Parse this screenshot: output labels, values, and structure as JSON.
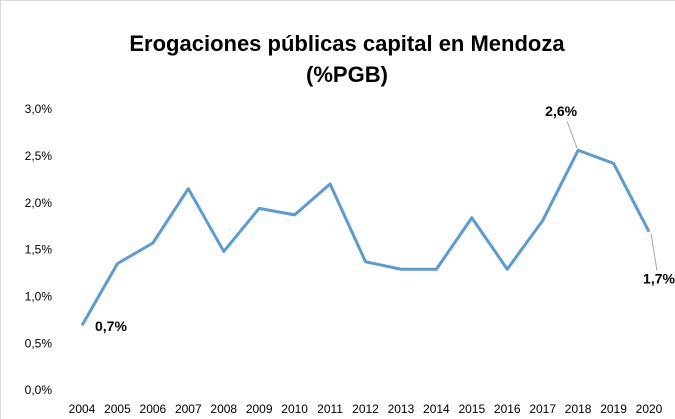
{
  "chart_data": {
    "type": "line",
    "title": "Erogaciones públicas capital en Mendoza",
    "subtitle": "(%PGB)",
    "categories": [
      "2004",
      "2005",
      "2006",
      "2007",
      "2008",
      "2009",
      "2010",
      "2011",
      "2012",
      "2013",
      "2014",
      "2015",
      "2016",
      "2017",
      "2018",
      "2019",
      "2020"
    ],
    "series": [
      {
        "name": "Erogaciones públicas capital",
        "color": "#5b9bd5",
        "values": [
          0.7,
          1.36,
          1.58,
          2.16,
          1.49,
          1.95,
          1.88,
          2.21,
          1.38,
          1.3,
          1.3,
          1.85,
          1.3,
          1.82,
          2.57,
          2.43,
          1.7
        ],
        "value_labels": [
          "0,7%",
          null,
          null,
          null,
          null,
          null,
          null,
          null,
          null,
          null,
          null,
          null,
          null,
          null,
          "2,6%",
          null,
          "1,7%"
        ]
      }
    ],
    "ylim": [
      0,
      3
    ],
    "yticks": [
      {
        "value": 0,
        "label": "0,0%"
      },
      {
        "value": 0.5,
        "label": "0,5%"
      },
      {
        "value": 1,
        "label": "1,0%"
      },
      {
        "value": 1.5,
        "label": "1,5%"
      },
      {
        "value": 2,
        "label": "2,0%"
      },
      {
        "value": 2.5,
        "label": "2,5%"
      },
      {
        "value": 3,
        "label": "3,0%"
      }
    ],
    "grid": false
  }
}
